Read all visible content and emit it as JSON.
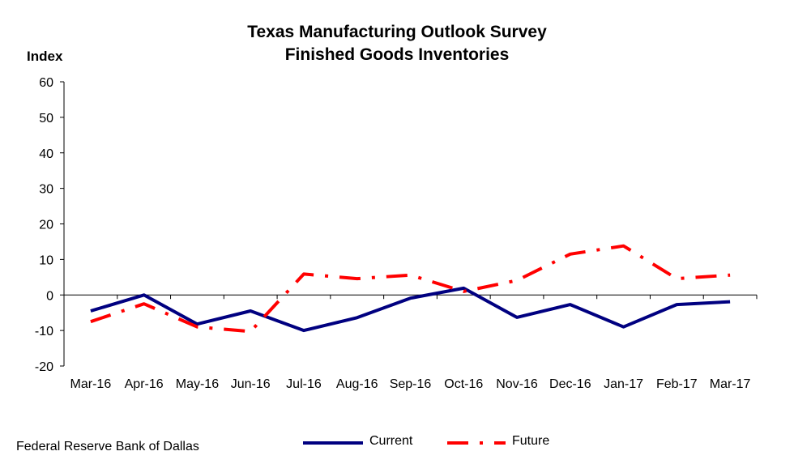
{
  "chart_data": {
    "type": "line",
    "title": [
      "Texas Manufacturing Outlook Survey",
      "Finished Goods Inventories"
    ],
    "ylabel": "Index",
    "xlabel": "",
    "categories": [
      "Mar-16",
      "Apr-16",
      "May-16",
      "Jun-16",
      "Jul-16",
      "Aug-16",
      "Sep-16",
      "Oct-16",
      "Nov-16",
      "Dec-16",
      "Jan-17",
      "Feb-17",
      "Mar-17"
    ],
    "ylim": [
      -20,
      60
    ],
    "yticks": [
      -20,
      -10,
      0,
      10,
      20,
      30,
      40,
      50,
      60
    ],
    "grid": false,
    "legend_position": "bottom",
    "series": [
      {
        "name": "Current",
        "color": "#000080",
        "style": "solid",
        "values": [
          -4.5,
          0.0,
          -8.2,
          -4.5,
          -10.0,
          -6.4,
          -0.9,
          1.9,
          -6.3,
          -2.7,
          -9.0,
          -2.7,
          -1.9
        ]
      },
      {
        "name": "Future",
        "color": "#ff0000",
        "style": "dash-dot",
        "values": [
          -7.5,
          -2.5,
          -9.0,
          -10.3,
          5.9,
          4.6,
          5.6,
          1.0,
          4.1,
          11.5,
          13.8,
          4.6,
          5.6
        ]
      }
    ]
  },
  "footer": {
    "source": "Federal Reserve Bank of Dallas"
  }
}
